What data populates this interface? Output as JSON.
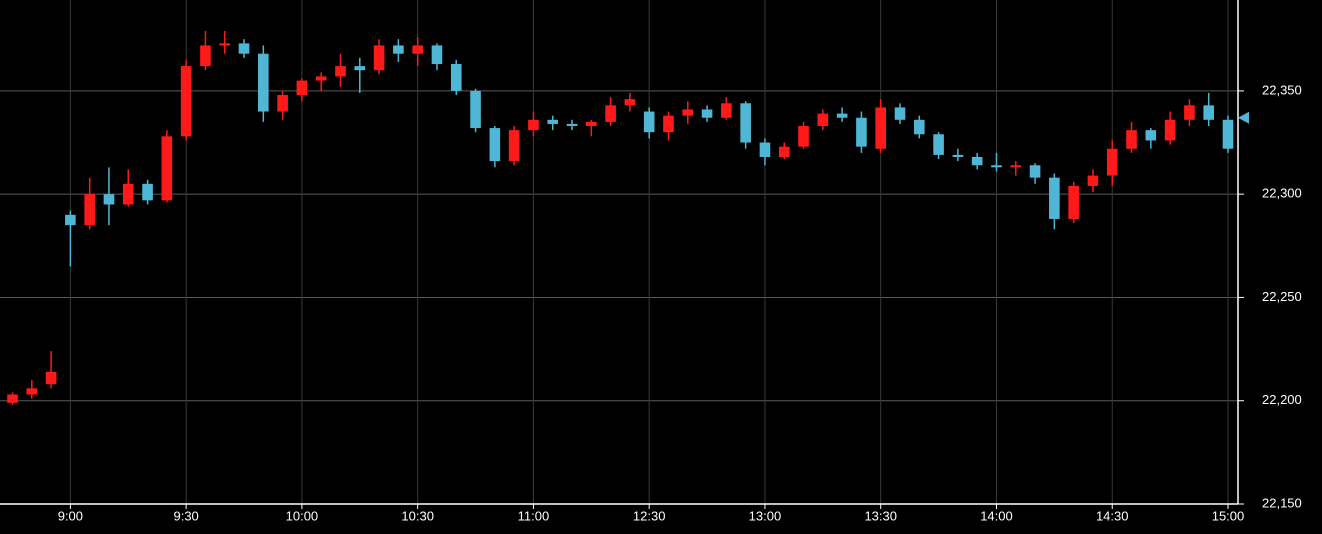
{
  "chart_data": {
    "type": "candlestick",
    "categories": [
      null,
      null,
      null,
      "9:00",
      null,
      null,
      null,
      null,
      null,
      "9:30",
      null,
      null,
      null,
      null,
      null,
      "10:00",
      null,
      null,
      null,
      null,
      null,
      "10:30",
      null,
      null,
      null,
      null,
      null,
      "11:00",
      null,
      null,
      null,
      null,
      null,
      "12:30",
      null,
      null,
      null,
      null,
      null,
      "13:00",
      null,
      null,
      null,
      null,
      null,
      "13:30",
      null,
      null,
      null,
      null,
      null,
      "14:00",
      null,
      null,
      null,
      null,
      null,
      "14:30",
      null,
      null,
      null,
      null,
      null,
      "15:00"
    ],
    "open": [
      22199,
      22203,
      22208,
      22290,
      22285,
      22300,
      22295,
      22305,
      22297,
      22328,
      22362,
      22372,
      22373,
      22368,
      22340,
      22348,
      22355,
      22357,
      22362,
      22360,
      22372,
      22368,
      22372,
      22363,
      22350,
      22332,
      22316,
      22331,
      22336,
      22334,
      22333,
      22335,
      22343,
      22340,
      22330,
      22338,
      22341,
      22337,
      22344,
      22325,
      22318,
      22323,
      22333,
      22339,
      22337,
      22322,
      22342,
      22336,
      22329,
      22319,
      22318,
      22314,
      22313,
      22314,
      22308,
      22288,
      22304,
      22309,
      22322,
      22331,
      22326,
      22336,
      22343,
      22336
    ],
    "high": [
      22204,
      22210,
      22224,
      22292,
      22308,
      22313,
      22312,
      22307,
      22331,
      22365,
      22379,
      22379,
      22375,
      22372,
      22350,
      22356,
      22359,
      22368,
      22366,
      22375,
      22375,
      22376,
      22373,
      22365,
      22351,
      22333,
      22333,
      22340,
      22338,
      22336,
      22336,
      22347,
      22349,
      22342,
      22340,
      22345,
      22343,
      22347,
      22345,
      22327,
      22325,
      22335,
      22341,
      22342,
      22340,
      22346,
      22344,
      22338,
      22330,
      22322,
      22320,
      22320,
      22316,
      22315,
      22310,
      22306,
      22312,
      22326,
      22335,
      22332,
      22340,
      22346,
      22349,
      22338
    ],
    "low": [
      22198,
      22201,
      22206,
      22265,
      22283,
      22285,
      22294,
      22295,
      22296,
      22326,
      22360,
      22368,
      22366,
      22335,
      22336,
      22345,
      22350,
      22352,
      22349,
      22358,
      22364,
      22362,
      22360,
      22348,
      22330,
      22313,
      22314,
      22328,
      22331,
      22331,
      22328,
      22333,
      22340,
      22327,
      22326,
      22334,
      22335,
      22336,
      22322,
      22314,
      22317,
      22322,
      22331,
      22335,
      22320,
      22320,
      22334,
      22327,
      22317,
      22316,
      22312,
      22311,
      22309,
      22305,
      22283,
      22286,
      22301,
      22304,
      22320,
      22322,
      22324,
      22333,
      22333,
      22320
    ],
    "close": [
      22203,
      22206,
      22214,
      22285,
      22300,
      22295,
      22305,
      22297,
      22328,
      22362,
      22372,
      22373,
      22368,
      22340,
      22348,
      22355,
      22357,
      22362,
      22360,
      22372,
      22368,
      22372,
      22363,
      22350,
      22332,
      22316,
      22331,
      22336,
      22334,
      22333,
      22335,
      22343,
      22346,
      22330,
      22338,
      22341,
      22337,
      22344,
      22325,
      22318,
      22323,
      22333,
      22339,
      22337,
      22323,
      22342,
      22336,
      22329,
      22319,
      22318,
      22314,
      22313,
      22314,
      22308,
      22288,
      22304,
      22309,
      22322,
      22331,
      22326,
      22336,
      22343,
      22336,
      22322
    ],
    "up_color": "#ff1a1a",
    "down_color": "#4fb6d6",
    "ylim": [
      22150,
      22394
    ],
    "yticks": [
      {
        "value": 22150,
        "label": "22,150"
      },
      {
        "value": 22200,
        "label": "22,200"
      },
      {
        "value": 22250,
        "label": "22,250"
      },
      {
        "value": 22300,
        "label": "22,300"
      },
      {
        "value": 22350,
        "label": "22,350"
      }
    ],
    "grid": true,
    "last_marker": 22337
  }
}
